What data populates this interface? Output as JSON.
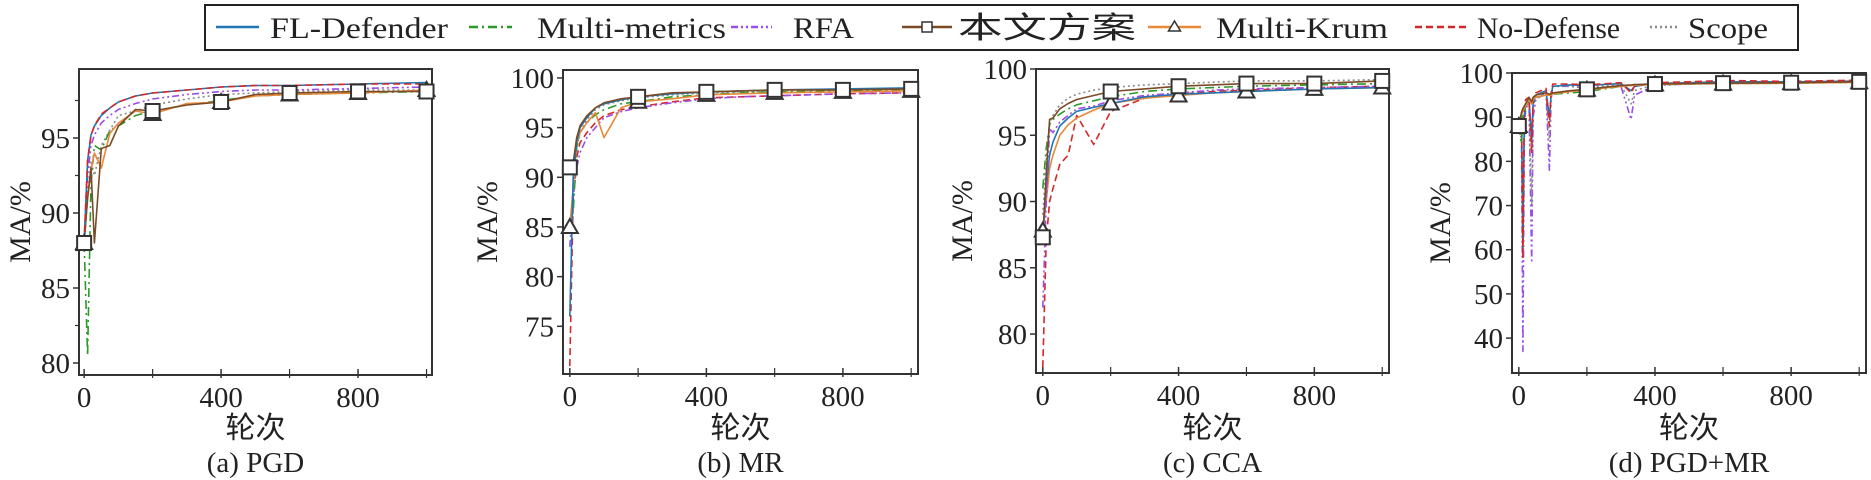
{
  "chart_data": {
    "legend": {
      "placement": "top-center",
      "items": [
        {
          "name": "FL-Defender",
          "color": "#1f77b4",
          "style": "solid",
          "marker": "none"
        },
        {
          "name": "Multi-metrics",
          "color": "#2a9a2a",
          "style": "dashdot",
          "marker": "none"
        },
        {
          "name": "RFA",
          "color": "#9b4dea",
          "style": "dashdotdot",
          "marker": "none"
        },
        {
          "name": "本文方案",
          "color": "#7b4a26",
          "style": "solid",
          "marker": "square"
        },
        {
          "name": "Multi-Krum",
          "color": "#e8893a",
          "style": "solid",
          "marker": "triangle"
        },
        {
          "name": "No-Defense",
          "color": "#d62728",
          "style": "dashed",
          "marker": "none"
        },
        {
          "name": "Scope",
          "color": "#8a8a8a",
          "style": "dotted",
          "marker": "none"
        }
      ]
    },
    "panels": [
      {
        "type": "line",
        "caption": "(a) PGD",
        "xlabel": "轮次",
        "ylabel": "MA/%",
        "xlim": [
          -15,
          1016
        ],
        "ylim": [
          79.2,
          99.6
        ],
        "xticks": [
          0,
          400,
          800
        ],
        "xminor": [
          200,
          600,
          1000
        ],
        "yticks": [
          80,
          85,
          90,
          95
        ],
        "yminor": [
          82.5,
          87.5,
          92.5,
          97.5
        ],
        "marker_x": [
          0,
          200,
          400,
          600,
          800,
          1000
        ],
        "x": [
          0,
          10,
          20,
          30,
          50,
          75,
          100,
          150,
          200,
          300,
          400,
          500,
          600,
          800,
          1000
        ],
        "series": [
          {
            "name": "Scope",
            "values": [
              88,
              91,
              93.5,
              92.5,
              94.5,
              95.5,
              96.5,
              96.8,
              97.2,
              97.6,
              97.9,
              98.0,
              98.1,
              98.2,
              98.2
            ]
          },
          {
            "name": "Multi-metrics",
            "values": [
              88,
              80.5,
              92,
              94.5,
              94.2,
              95.5,
              95.8,
              96.5,
              96.8,
              97.2,
              97.5,
              97.8,
              97.9,
              98.0,
              98.1
            ]
          },
          {
            "name": "RFA",
            "values": [
              88,
              92.5,
              94.5,
              95.2,
              96,
              96.5,
              96.9,
              97.3,
              97.6,
              97.9,
              98.1,
              98.2,
              98.2,
              98.3,
              98.4
            ]
          },
          {
            "name": "Multi-Krum",
            "values": [
              88,
              91,
              92.8,
              94,
              93,
              95.3,
              96.0,
              96.8,
              96.6,
              97.3,
              97.4,
              97.8,
              97.9,
              98.0,
              98.2
            ]
          },
          {
            "name": "本文方案",
            "values": [
              88,
              91,
              93,
              88,
              94.3,
              94.5,
              95.8,
              96.9,
              96.8,
              97.2,
              97.4,
              97.9,
              98.0,
              98.1,
              98.1
            ]
          },
          {
            "name": "FL-Defender",
            "values": [
              88,
              93.5,
              95.2,
              95.8,
              96.5,
              97.0,
              97.4,
              97.8,
              98.0,
              98.2,
              98.4,
              98.5,
              98.5,
              98.6,
              98.7
            ]
          },
          {
            "name": "No-Defense",
            "values": [
              88,
              93.5,
              95.2,
              95.8,
              96.6,
              97.0,
              97.4,
              97.8,
              98.0,
              98.2,
              98.4,
              98.5,
              98.5,
              98.6,
              98.6
            ]
          }
        ]
      },
      {
        "type": "line",
        "caption": "(b) MR",
        "xlabel": "轮次",
        "ylabel": "MA/%",
        "xlim": [
          -20,
          1020
        ],
        "ylim": [
          70.2,
          100.8
        ],
        "xticks": [
          0,
          400,
          800
        ],
        "xminor": [
          200,
          600,
          1000
        ],
        "yticks": [
          75,
          80,
          85,
          90,
          95,
          100
        ],
        "yminor": [],
        "marker_x": [
          0,
          200,
          400,
          600,
          800,
          1000
        ],
        "x": [
          0,
          10,
          20,
          30,
          50,
          75,
          100,
          150,
          200,
          300,
          400,
          500,
          600,
          800,
          1000
        ],
        "series": [
          {
            "name": "No-Defense",
            "values": [
              71,
              88,
              92,
              93.5,
              94.5,
              95.5,
              96.2,
              96.8,
              97.1,
              97.6,
              98.0,
              98.1,
              98.2,
              98.4,
              98.5
            ]
          },
          {
            "name": "RFA",
            "values": [
              83,
              88,
              91,
              92.5,
              94,
              95,
              96,
              96.6,
              97,
              97.5,
              97.9,
              98.1,
              98.2,
              98.4,
              98.5
            ]
          },
          {
            "name": "Scope",
            "values": [
              91,
              91,
              93,
              94.5,
              95.8,
              96.8,
              97.3,
              97.7,
              98,
              98.3,
              98.5,
              98.6,
              98.7,
              98.8,
              98.9
            ]
          },
          {
            "name": "Multi-metrics",
            "values": [
              85,
              86.5,
              93,
              94.5,
              95.5,
              96.3,
              96.8,
              97.4,
              97.6,
              98.1,
              98.3,
              98.5,
              98.6,
              98.7,
              98.8
            ]
          },
          {
            "name": "Multi-Krum",
            "values": [
              85,
              89,
              93.5,
              94.5,
              95.5,
              96.5,
              94,
              97,
              97.6,
              97.9,
              98.3,
              98.4,
              98.5,
              98.6,
              98.7
            ]
          },
          {
            "name": "FL-Defender",
            "values": [
              76,
              90,
              93.5,
              95,
              96,
              97,
              97.4,
              97.8,
              98.1,
              98.4,
              98.6,
              98.7,
              98.8,
              98.9,
              99.0
            ]
          },
          {
            "name": "本文方案",
            "values": [
              91,
              91.5,
              94,
              95.2,
              96.2,
              97,
              97.5,
              97.9,
              98.1,
              98.5,
              98.6,
              98.7,
              98.8,
              98.8,
              98.9
            ]
          }
        ]
      },
      {
        "type": "line",
        "caption": "(c) CCA",
        "xlabel": "轮次",
        "ylabel": "MA/%",
        "xlim": [
          -20,
          1020
        ],
        "ylim": [
          77.06,
          100
        ],
        "xticks": [
          0,
          400,
          800
        ],
        "xminor": [
          200,
          600,
          1000
        ],
        "yticks": [
          80,
          85,
          90,
          95,
          100
        ],
        "yminor": [],
        "marker_x": [
          0,
          200,
          400,
          600,
          800,
          1000
        ],
        "x": [
          0,
          10,
          20,
          30,
          50,
          75,
          100,
          150,
          200,
          300,
          400,
          500,
          600,
          800,
          1000
        ],
        "series": [
          {
            "name": "No-Defense",
            "values": [
              77.5,
              87,
              90,
              91,
              92.8,
              93.5,
              96.5,
              94.3,
              96.8,
              97.8,
              98.1,
              98.3,
              98.4,
              98.6,
              98.7
            ]
          },
          {
            "name": "Multi-Krum",
            "values": [
              87.8,
              90,
              92.5,
              93.5,
              95,
              95.8,
              96.3,
              96.9,
              97.4,
              97.8,
              98.0,
              98.2,
              98.3,
              98.5,
              98.6
            ]
          },
          {
            "name": "FL-Defender",
            "values": [
              87.5,
              91,
              93.5,
              94.5,
              95.7,
              96.3,
              96.8,
              97.1,
              97.4,
              97.9,
              98.1,
              98.2,
              98.3,
              98.5,
              98.6
            ]
          },
          {
            "name": "RFA",
            "values": [
              82,
              90,
              95.5,
              95.2,
              96,
              96.5,
              97,
              97.2,
              97.6,
              98,
              98.2,
              98.4,
              98.5,
              98.6,
              98.7
            ]
          },
          {
            "name": "Multi-metrics",
            "values": [
              91,
              94,
              95.8,
              96.2,
              96.6,
              97,
              97.3,
              97.6,
              97.9,
              98.3,
              98.5,
              98.6,
              98.7,
              98.8,
              98.9
            ]
          },
          {
            "name": "Scope",
            "values": [
              89,
              93,
              96,
              96.5,
              97.3,
              97.8,
              98.1,
              98.4,
              98.6,
              98.8,
              98.9,
              99.0,
              99.1,
              99.1,
              99.2
            ]
          },
          {
            "name": "本文方案",
            "values": [
              87.3,
              92,
              96.2,
              96.3,
              97,
              97.4,
              97.7,
              98.0,
              98.3,
              98.5,
              98.7,
              98.8,
              98.9,
              98.9,
              99.1
            ]
          }
        ]
      },
      {
        "type": "line",
        "caption": "(d) PGD+MR",
        "xlabel": "轮次",
        "ylabel": "MA/%",
        "xlim": [
          -20,
          1020
        ],
        "ylim": [
          32.1,
          100
        ],
        "xticks": [
          0,
          400,
          800
        ],
        "xminor": [
          200,
          600,
          1000
        ],
        "yticks": [
          40,
          50,
          60,
          70,
          80,
          90,
          100
        ],
        "yminor": [],
        "marker_x": [
          0,
          200,
          400,
          600,
          800,
          1000
        ],
        "x": [
          0,
          8,
          12,
          16,
          20,
          30,
          38,
          42,
          50,
          80,
          90,
          95,
          100,
          150,
          200,
          300,
          330,
          340,
          400,
          500,
          600,
          800,
          1000
        ],
        "series": [
          {
            "name": "RFA",
            "values": [
              88,
              85,
              37,
              85,
              92,
              93,
              57,
              90,
              94,
              95.5,
              78,
              94,
              97,
              97,
              96.5,
              97,
              89.5,
              95,
              97.2,
              97.5,
              97.8,
              97.8,
              98
            ]
          },
          {
            "name": "Scope",
            "values": [
              88,
              89,
              70,
              90,
              93,
              94,
              70,
              92,
              95,
              96,
              85,
              94.5,
              97,
              97,
              96.8,
              97.3,
              93,
              96,
              97.4,
              97.6,
              97.9,
              97.9,
              98.1
            ]
          },
          {
            "name": "FL-Defender",
            "values": [
              88,
              91,
              60,
              90,
              93,
              94,
              85,
              93,
              95,
              96,
              90,
              95,
              97,
              97.3,
              97.2,
              97.6,
              96,
              97,
              97.6,
              97.8,
              98,
              98,
              98.2
            ]
          },
          {
            "name": "No-Defense",
            "values": [
              88,
              90,
              58,
              92,
              94,
              94.5,
              82,
              94,
              95.5,
              96.5,
              88,
              95.5,
              97.5,
              97.5,
              97.3,
              97.8,
              95.5,
              97,
              97.8,
              98,
              98.3,
              98.1,
              98.4
            ]
          },
          {
            "name": "Multi-metrics",
            "values": [
              88,
              84,
              90,
              91,
              92,
              94,
              93,
              94,
              94.5,
              95,
              95,
              95,
              95.2,
              95.5,
              95.8,
              97,
              97.2,
              97.3,
              97.3,
              97.5,
              97.6,
              97.7,
              97.9
            ]
          },
          {
            "name": "Multi-Krum",
            "values": [
              88,
              90.5,
              91.5,
              92,
              92.5,
              94,
              93,
              94,
              94.5,
              95,
              95,
              95,
              95.3,
              95.8,
              96.2,
              97,
              97.2,
              97.3,
              97.4,
              97.5,
              97.6,
              97.7,
              97.9
            ]
          },
          {
            "name": "本文方案",
            "values": [
              88,
              91,
              92,
              92.5,
              93,
              94.5,
              93.5,
              94.5,
              95,
              95.5,
              95.2,
              95.3,
              95.5,
              96,
              96.3,
              97.2,
              97.3,
              97.4,
              97.5,
              97.6,
              97.7,
              97.8,
              98
            ]
          }
        ]
      }
    ]
  }
}
